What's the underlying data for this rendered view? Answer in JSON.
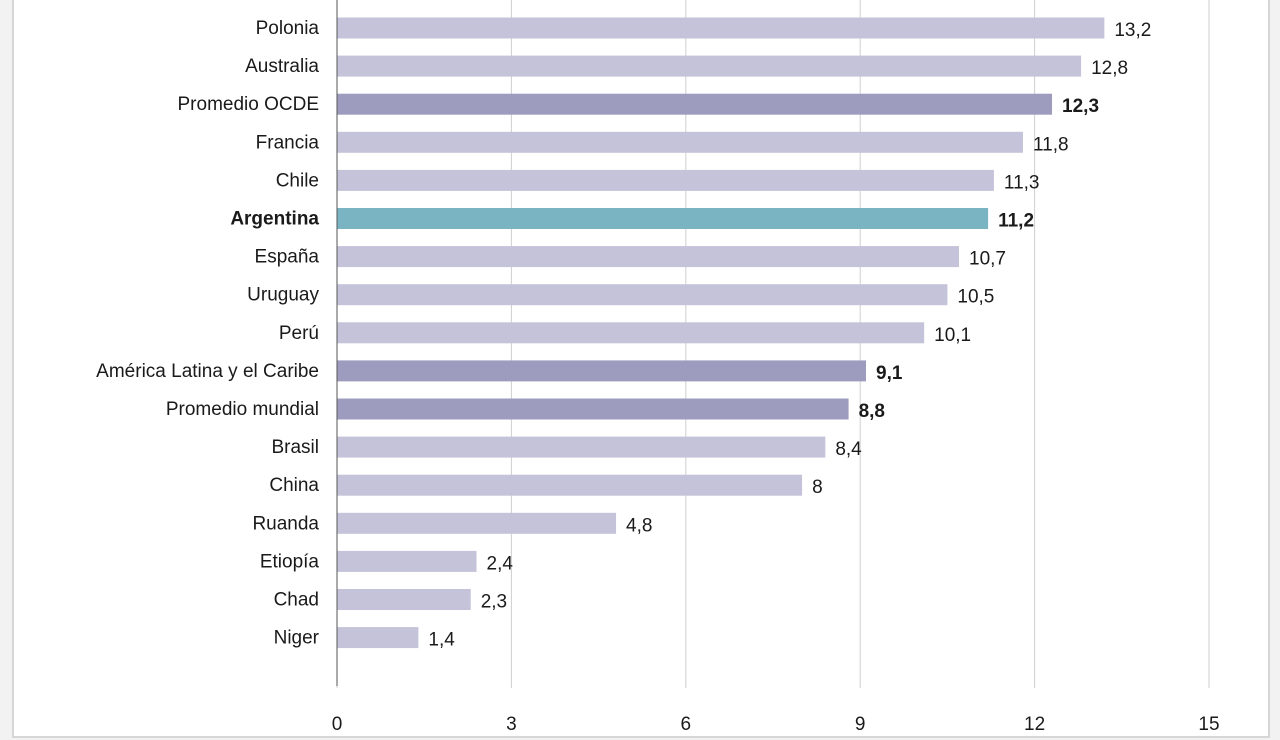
{
  "chart_data": {
    "type": "bar",
    "orientation": "horizontal",
    "categories": [
      "Polonia",
      "Australia",
      "Promedio OCDE",
      "Francia",
      "Chile",
      "Argentina",
      "España",
      "Uruguay",
      "Perú",
      "América Latina y el Caribe",
      "Promedio mundial",
      "Brasil",
      "China",
      "Ruanda",
      "Etiopía",
      "Chad",
      "Niger"
    ],
    "values": [
      13.2,
      12.8,
      12.3,
      11.8,
      11.3,
      11.2,
      10.7,
      10.5,
      10.1,
      9.1,
      8.8,
      8.4,
      8,
      4.8,
      2.4,
      2.3,
      1.4
    ],
    "value_labels": [
      "13,2",
      "12,8",
      "12,3",
      "11,8",
      "11,3",
      "11,2",
      "10,7",
      "10,5",
      "10,1",
      "9,1",
      "8,8",
      "8,4",
      "8",
      "4,8",
      "2,4",
      "2,3",
      "1,4"
    ],
    "highlight": [
      "normal",
      "normal",
      "aggregate",
      "normal",
      "normal",
      "focus",
      "normal",
      "normal",
      "normal",
      "aggregate",
      "aggregate",
      "normal",
      "normal",
      "normal",
      "normal",
      "normal",
      "normal"
    ],
    "xlim": [
      0,
      15
    ],
    "xticks": [
      0,
      3,
      6,
      9,
      12,
      15
    ],
    "xtick_labels": [
      "0",
      "3",
      "6",
      "9",
      "12",
      "15"
    ],
    "grid": true,
    "colors": {
      "normal": "#c5c3d9",
      "aggregate": "#9e9cbe",
      "focus": "#7ab4c2",
      "grid": "#cfcfcf",
      "axis": "#555555"
    }
  }
}
